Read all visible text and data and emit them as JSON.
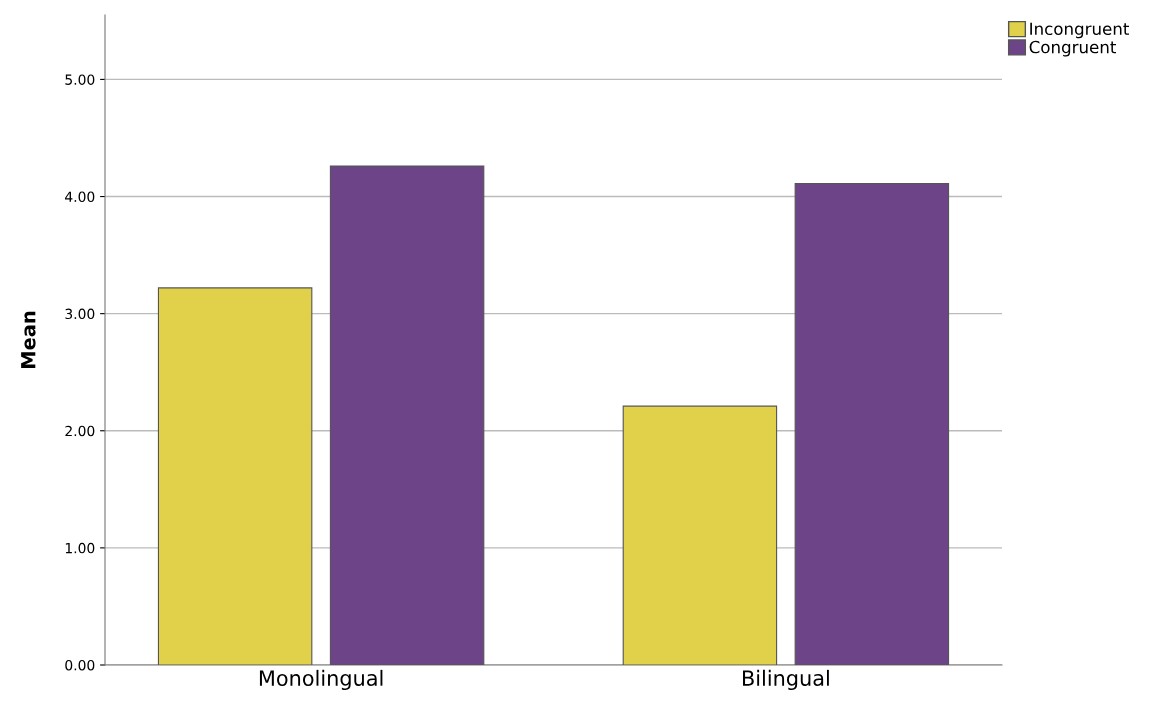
{
  "chart_data": {
    "type": "bar",
    "ylabel": "Mean",
    "categories": [
      "Monolingual",
      "Bilingual"
    ],
    "series": [
      {
        "name": "Incongruent",
        "color": "#e1d14a",
        "values": [
          3.22,
          2.21
        ]
      },
      {
        "name": "Congruent",
        "color": "#6e4489",
        "values": [
          4.26,
          4.11
        ]
      }
    ],
    "ylim": [
      0,
      5.55
    ],
    "yticks": [
      {
        "value": 0,
        "label": "0.00"
      },
      {
        "value": 1,
        "label": "1.00"
      },
      {
        "value": 2,
        "label": "2.00"
      },
      {
        "value": 3,
        "label": "3.00"
      },
      {
        "value": 4,
        "label": "4.00"
      },
      {
        "value": 5,
        "label": "5.00"
      }
    ],
    "grid": "y",
    "legend": "top right"
  }
}
